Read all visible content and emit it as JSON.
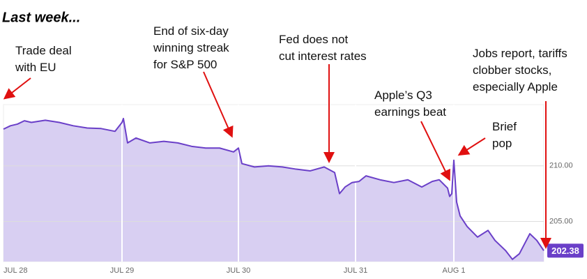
{
  "chart_data": {
    "type": "area",
    "title": "Last week...",
    "annotations": [
      {
        "lines": [
          "Trade deal",
          "with EU"
        ]
      },
      {
        "lines": [
          "End of six-day",
          "winning streak",
          "for S&P 500"
        ]
      },
      {
        "lines": [
          "Fed does not",
          "cut interest rates"
        ]
      },
      {
        "lines": [
          "Apple’s Q3",
          "earnings beat"
        ]
      },
      {
        "lines": [
          "Brief",
          "pop"
        ]
      },
      {
        "lines": [
          "Jobs report, tariffs",
          "clobber stocks,",
          "especially Apple"
        ]
      }
    ],
    "x": [
      0,
      10,
      20,
      30,
      40,
      60,
      80,
      100,
      120,
      140,
      160,
      170,
      172,
      178,
      190,
      210,
      230,
      250,
      270,
      290,
      310,
      330,
      337,
      342,
      360,
      380,
      400,
      420,
      440,
      460,
      475,
      482,
      490,
      500,
      510,
      520,
      540,
      560,
      580,
      600,
      615,
      625,
      637,
      640,
      643,
      646,
      650,
      655,
      665,
      680,
      695,
      705,
      720,
      730,
      740,
      750,
      755,
      765,
      775
    ],
    "values": [
      213.3,
      213.6,
      213.75,
      214.05,
      213.9,
      214.1,
      213.9,
      213.6,
      213.4,
      213.35,
      213.1,
      213.9,
      214.25,
      212.06,
      212.5,
      212.06,
      212.2,
      212.06,
      211.75,
      211.6,
      211.6,
      211.25,
      211.6,
      210.2,
      209.9,
      210.0,
      209.9,
      209.7,
      209.55,
      209.9,
      209.4,
      207.5,
      208.1,
      208.5,
      208.6,
      209.1,
      208.75,
      208.5,
      208.75,
      208.1,
      208.6,
      208.75,
      208.0,
      207.25,
      207.5,
      210.5,
      206.75,
      205.5,
      204.55,
      203.6,
      204.2,
      203.3,
      202.4,
      201.6,
      202.1,
      203.3,
      203.9,
      203.3,
      202.38
    ],
    "current_value": 202.38,
    "color": "#6a3fc8",
    "fill": "#d8cff2",
    "xlim": [
      0,
      775
    ],
    "xticks": [
      {
        "value": 0,
        "label": "JUL 28"
      },
      {
        "value": 170,
        "label": "JUL 29"
      },
      {
        "value": 337,
        "label": "JUL 30"
      },
      {
        "value": 505,
        "label": "JUL 31"
      },
      {
        "value": 646,
        "label": "AUG 1"
      }
    ],
    "ylim": [
      201.4,
      215.5
    ],
    "yticks": [
      {
        "value": 205,
        "label": "205.00"
      },
      {
        "value": 210,
        "label": "210.00"
      }
    ],
    "grid": true
  }
}
